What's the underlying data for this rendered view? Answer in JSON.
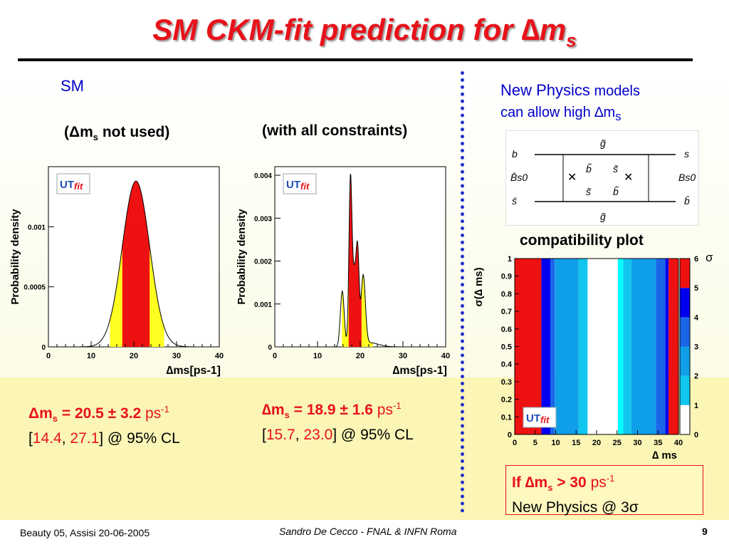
{
  "slide": {
    "title": "SM CKM-fit prediction for ∆m",
    "title_sub": "s",
    "sm_label": "SM",
    "caption_left_prefix": "(Δm",
    "caption_left_sub": "s",
    "caption_left_suffix": " not used)",
    "caption_mid": "(with all constraints)",
    "np_line1_a": "New Physics",
    "np_line1_b": " models",
    "np_line2": "can allow high ∆m",
    "np_line2_sub": "s",
    "compat_label": "compatibility plot",
    "result_left": {
      "sym": "Δm",
      "sub": "s",
      "eq": " = 20.5 ± 3.2 ",
      "unit": "ps",
      "exp": "-1",
      "lo": "14.4",
      "hi": "27.1",
      "cl": "] @ 95% CL"
    },
    "result_mid": {
      "sym": "∆m",
      "sub": "s",
      "eq": " = 18.9 ± 1.6 ",
      "unit": "ps",
      "exp": "-1",
      "lo": "15.7",
      "hi": "23.0",
      "cl": "] @ 95% CL"
    },
    "if_box": {
      "if": "If ∆m",
      "sub": "s",
      "gt": " > 30 ",
      "unit": "ps",
      "exp": "-1",
      "line2": "New Physics @ 3σ"
    },
    "footer_left": "Beauty 05, Assisi 20-06-2005",
    "footer_center": "Sandro De Cecco - FNAL & INFN Roma",
    "page_number": "9",
    "logo_text_a": "UT",
    "logo_text_b": "fit",
    "diagram": {
      "labels": [
        "b",
        "B̄s0",
        "s̄",
        "g̃",
        "b̃",
        "s̃",
        "s̃",
        "b̃",
        "g̃",
        "s",
        "Bs0",
        "b̄"
      ]
    }
  },
  "chart_data": [
    {
      "type": "area",
      "ylabel": "Probability density",
      "xlabel": "∆ms[ps-1]",
      "xlim": [
        0,
        40
      ],
      "ylim": [
        0,
        0.0015
      ],
      "xticks": [
        "0",
        "10",
        "20",
        "30",
        "40"
      ],
      "yticks": [
        {
          "v": 0,
          "t": "0"
        },
        {
          "v": 0.0005,
          "t": "0.0005"
        },
        {
          "v": 0.001,
          "t": "0.001"
        }
      ],
      "peak": 20.5,
      "sigma": 3.2,
      "peak_value": 0.00138,
      "band68": [
        17.3,
        23.7
      ],
      "band95": [
        14.4,
        27.1
      ]
    },
    {
      "type": "area",
      "ylabel": "Probability density",
      "xlabel": "∆ms[ps-1]",
      "xlim": [
        0,
        40
      ],
      "ylim": [
        0,
        0.0042
      ],
      "xticks": [
        "0",
        "10",
        "20",
        "30",
        "40"
      ],
      "yticks": [
        {
          "v": 0,
          "t": "0"
        },
        {
          "v": 0.001,
          "t": "0.001"
        },
        {
          "v": 0.002,
          "t": "0.002"
        },
        {
          "v": 0.003,
          "t": "0.003"
        },
        {
          "v": 0.004,
          "t": "0.004"
        }
      ],
      "components": [
        {
          "mu": 15.8,
          "s": 0.45,
          "a": 0.0013
        },
        {
          "mu": 17.7,
          "s": 0.35,
          "a": 0.0038
        },
        {
          "mu": 18.6,
          "s": 0.45,
          "a": 0.0016
        },
        {
          "mu": 19.4,
          "s": 0.35,
          "a": 0.002
        },
        {
          "mu": 20.7,
          "s": 0.5,
          "a": 0.0016
        },
        {
          "mu": 22.0,
          "s": 2.2,
          "a": 0.0001
        }
      ],
      "band68": [
        17.3,
        20.3
      ],
      "band95": [
        15.7,
        23.0
      ]
    },
    {
      "type": "heatmap",
      "xlabel": "∆ ms",
      "ylabel": "σ(∆ ms)",
      "xlim": [
        0,
        40
      ],
      "ylim": [
        0,
        1
      ],
      "xticks": [
        "0",
        "5",
        "10",
        "15",
        "20",
        "25",
        "30",
        "35",
        "40"
      ],
      "yticks": [
        "0",
        "0.1",
        "0.2",
        "0.3",
        "0.4",
        "0.5",
        "0.6",
        "0.7",
        "0.8",
        "0.9",
        "1"
      ],
      "colorbar_label": "σ",
      "colorbar_ticks": [
        "0",
        "1",
        "2",
        "3",
        "4",
        "5",
        "6"
      ],
      "colors": [
        "#ffffff",
        "#00ffff",
        "#11c6ee",
        "#0f9ee8",
        "#1b66e8",
        "#0000ee",
        "#ee1111"
      ],
      "x_bands": [
        {
          "from": 0,
          "to": 6.5,
          "level": 6
        },
        {
          "from": 6.5,
          "to": 8.7,
          "level": 5
        },
        {
          "from": 8.7,
          "to": 9.8,
          "level": 4
        },
        {
          "from": 9.8,
          "to": 15.6,
          "level": 3
        },
        {
          "from": 15.6,
          "to": 17.8,
          "level": 2
        },
        {
          "from": 17.8,
          "to": 25.2,
          "level": 0
        },
        {
          "from": 25.2,
          "to": 26.5,
          "level": 1
        },
        {
          "from": 26.5,
          "to": 28.5,
          "level": 2
        },
        {
          "from": 28.5,
          "to": 34.5,
          "level": 3
        },
        {
          "from": 34.5,
          "to": 36.8,
          "level": 4
        },
        {
          "from": 36.8,
          "to": 37.6,
          "level": 5
        },
        {
          "from": 37.6,
          "to": 40,
          "level": 6
        }
      ]
    }
  ]
}
